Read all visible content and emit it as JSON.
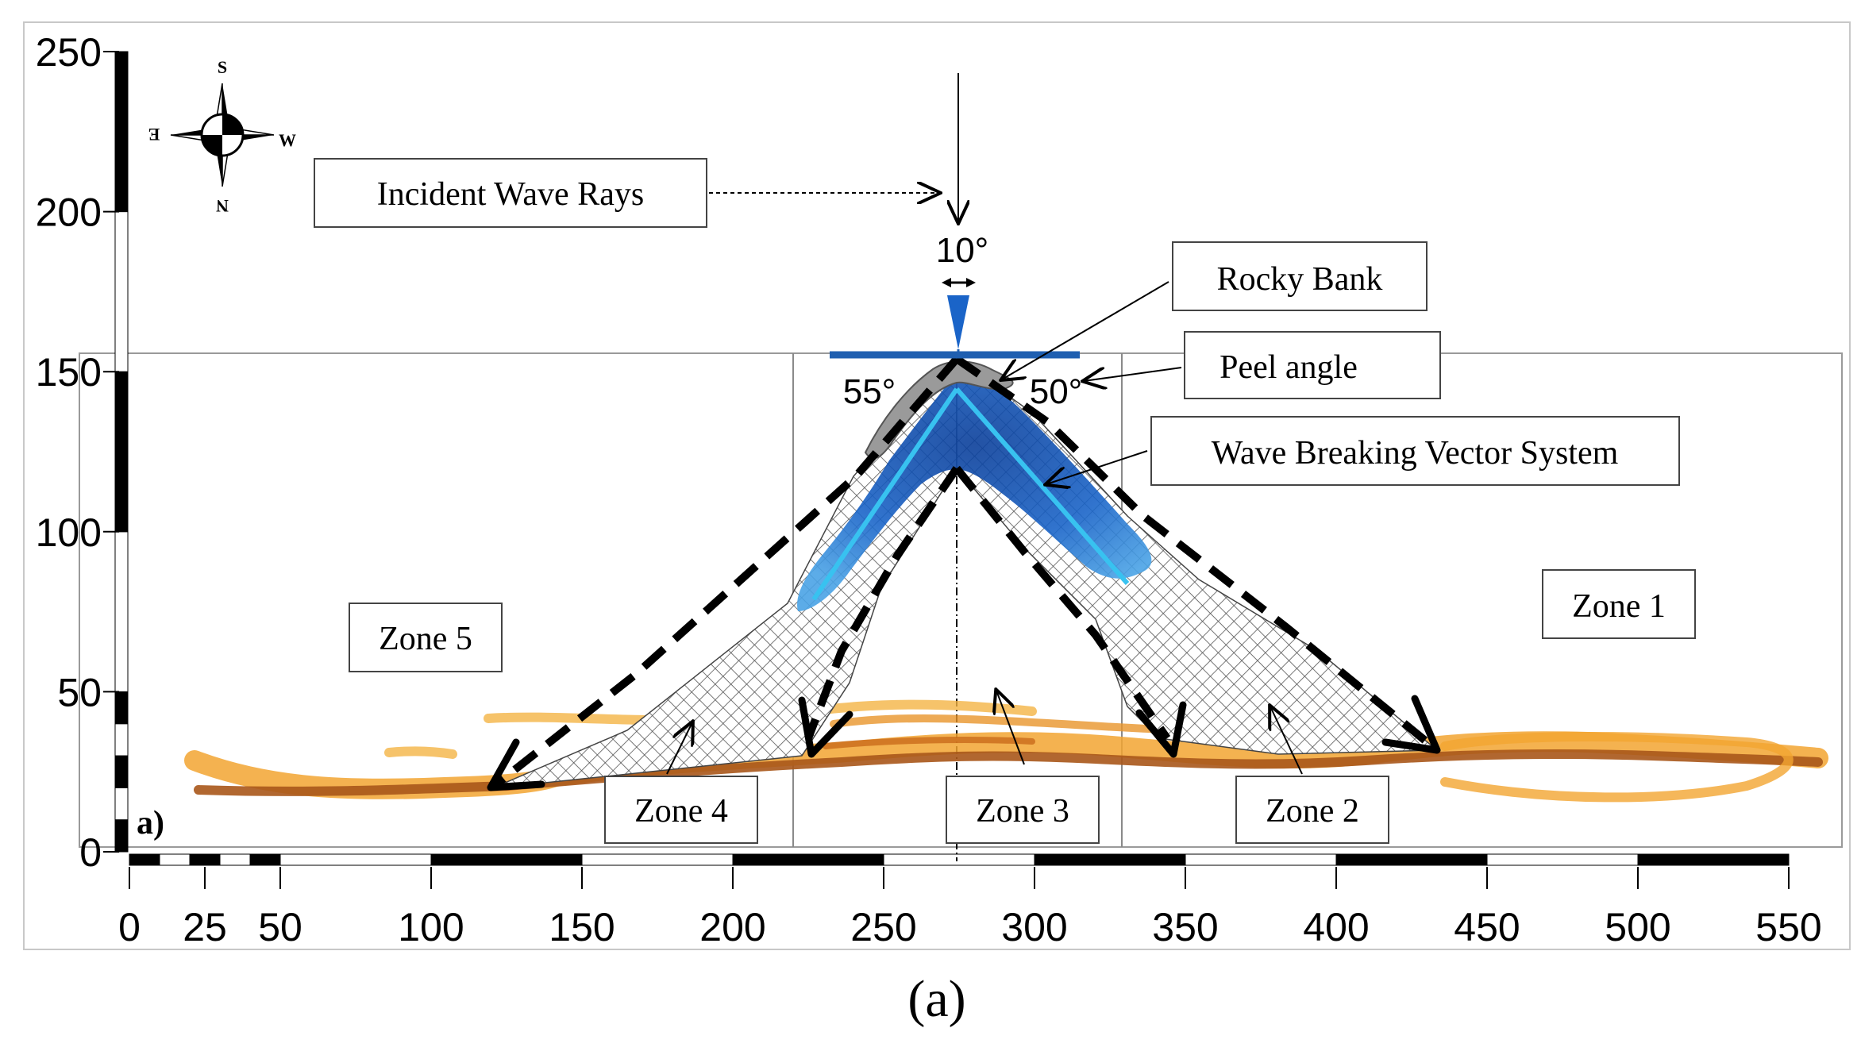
{
  "figure": {
    "panel_label": "a)",
    "caption": "(a)"
  },
  "axes": {
    "x_ticks": [
      0,
      25,
      50,
      100,
      150,
      200,
      250,
      300,
      350,
      400,
      450,
      500,
      550
    ],
    "y_ticks": [
      0,
      50,
      100,
      150,
      200,
      250
    ],
    "x_range": [
      0,
      550
    ],
    "y_range": [
      0,
      250
    ],
    "scale_bar_x_blocks": [
      [
        0,
        10,
        "black"
      ],
      [
        10,
        20,
        "white"
      ],
      [
        20,
        30,
        "black"
      ],
      [
        30,
        40,
        "white"
      ],
      [
        40,
        50,
        "black"
      ],
      [
        50,
        100,
        "white"
      ],
      [
        100,
        150,
        "black"
      ],
      [
        150,
        200,
        "white"
      ],
      [
        200,
        250,
        "black"
      ],
      [
        250,
        300,
        "white"
      ],
      [
        300,
        350,
        "black"
      ],
      [
        350,
        400,
        "white"
      ],
      [
        400,
        450,
        "black"
      ],
      [
        450,
        500,
        "white"
      ],
      [
        500,
        550,
        "black"
      ]
    ],
    "scale_bar_y_blocks": [
      [
        0,
        10,
        "black"
      ],
      [
        10,
        20,
        "white"
      ],
      [
        20,
        30,
        "black"
      ],
      [
        30,
        40,
        "white"
      ],
      [
        40,
        50,
        "black"
      ],
      [
        50,
        100,
        "white"
      ],
      [
        100,
        150,
        "black"
      ],
      [
        150,
        200,
        "white"
      ],
      [
        200,
        250,
        "black"
      ]
    ]
  },
  "compass": {
    "top": "S",
    "bottom": "N",
    "left": "E",
    "right": "W"
  },
  "annotations": {
    "incident": "Incident Wave Rays",
    "rocky_bank": "Rocky Bank",
    "peel_angle": "Peel angle",
    "vector_system": "Wave Breaking Vector System",
    "angle_top": "10°",
    "angle_left": "55°",
    "angle_right": "50°"
  },
  "zones": {
    "zone1": "Zone 1",
    "zone2": "Zone 2",
    "zone3": "Zone 3",
    "zone4": "Zone 4",
    "zone5": "Zone 5"
  },
  "colors": {
    "blue_line": "#1f5fb0",
    "blue_fill": "#1a64c8",
    "light_blue": "#2fb3e8",
    "orange": "#f0a020",
    "brown": "#9a4a10",
    "hatch": "#555555",
    "axis": "#000000"
  }
}
